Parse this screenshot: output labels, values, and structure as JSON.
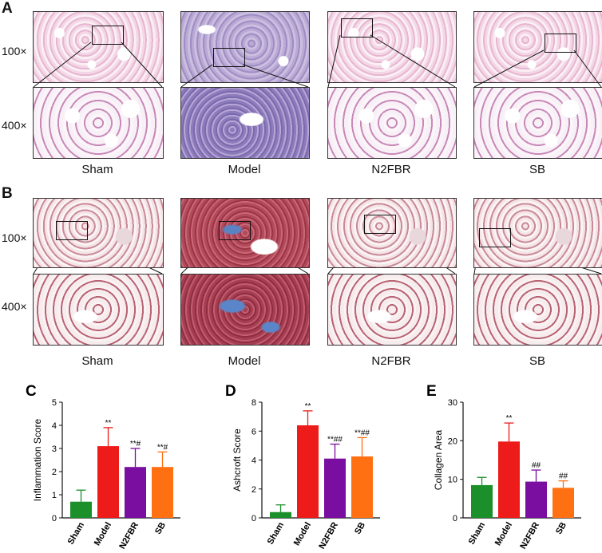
{
  "panels": {
    "A": "A",
    "B": "B",
    "C": "C",
    "D": "D",
    "E": "E"
  },
  "magnifications": {
    "low": "100×",
    "high": "400×"
  },
  "groups": [
    "Sham",
    "Model",
    "N2FBR",
    "SB"
  ],
  "colors": {
    "Sham": "#1a8f2a",
    "Model": "#ee1b1b",
    "N2FBR": "#7a0ea0",
    "SB": "#ff7012"
  },
  "chart_data": [
    {
      "type": "bar",
      "panel": "C",
      "categories": [
        "Sham",
        "Model",
        "N2FBR",
        "SB"
      ],
      "values": [
        0.7,
        3.1,
        2.2,
        2.2
      ],
      "errors": [
        0.5,
        0.8,
        0.8,
        0.65
      ],
      "annotations": [
        "",
        "**",
        "**#",
        "**#"
      ],
      "ylabel": "Inflammation Score",
      "ylim": [
        0,
        5
      ],
      "yticks": [
        0,
        1,
        2,
        3,
        4,
        5
      ]
    },
    {
      "type": "bar",
      "panel": "D",
      "categories": [
        "Sham",
        "Model",
        "N2FBR",
        "SB"
      ],
      "values": [
        0.4,
        6.4,
        4.1,
        4.25
      ],
      "errors": [
        0.5,
        1.0,
        1.0,
        1.3
      ],
      "annotations": [
        "",
        "**",
        "**##",
        "**##"
      ],
      "ylabel": "Ashcroft Score",
      "ylim": [
        0,
        8
      ],
      "yticks": [
        0,
        2,
        4,
        6,
        8
      ]
    },
    {
      "type": "bar",
      "panel": "E",
      "categories": [
        "Sham",
        "Model",
        "N2FBR",
        "SB"
      ],
      "values": [
        8.5,
        19.8,
        9.4,
        7.8
      ],
      "errors": [
        2.0,
        4.8,
        3.0,
        1.8
      ],
      "annotations": [
        "",
        "**",
        "##",
        "##"
      ],
      "ylabel": "Collagen Area",
      "ylim": [
        0,
        30
      ],
      "yticks": [
        0,
        10,
        20,
        30
      ]
    }
  ]
}
